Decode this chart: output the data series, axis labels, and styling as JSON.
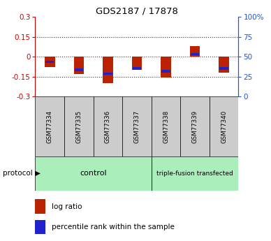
{
  "title": "GDS2187 / 17878",
  "samples": [
    "GSM77334",
    "GSM77335",
    "GSM77336",
    "GSM77337",
    "GSM77338",
    "GSM77339",
    "GSM77340"
  ],
  "log_ratio": [
    -0.08,
    -0.13,
    -0.2,
    -0.1,
    -0.16,
    0.08,
    -0.12
  ],
  "percentile_rank_val": [
    -0.04,
    -0.1,
    -0.13,
    -0.09,
    -0.11,
    0.02,
    -0.09
  ],
  "log_ratio_color": "#bb2200",
  "percentile_rank_color": "#2222cc",
  "bar_width": 0.35,
  "ylim": [
    -0.3,
    0.3
  ],
  "yticks_left": [
    -0.3,
    -0.15,
    0,
    0.15,
    0.3
  ],
  "yticks_right_pos": [
    -0.3,
    -0.15,
    0,
    0.15,
    0.3
  ],
  "yticks_right_labels": [
    "0",
    "25",
    "50",
    "75",
    "100%"
  ],
  "control_label": "control",
  "treatment_label": "triple-fusion transfected",
  "protocol_label": "protocol",
  "legend_log_ratio": "log ratio",
  "legend_percentile": "percentile rank within the sample",
  "control_color": "#aaeebb",
  "treatment_color": "#aaeebb",
  "panel_bg": "#cccccc",
  "zero_line_color": "#cc0000",
  "grid_color": "#333333",
  "left_axis_color": "#cc0000",
  "right_axis_color": "#2255cc"
}
